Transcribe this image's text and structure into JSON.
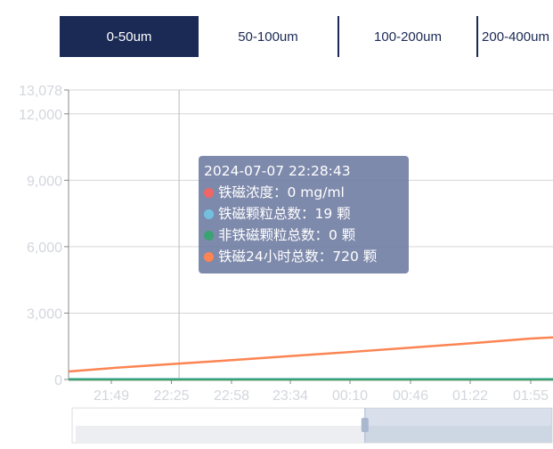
{
  "tabs": [
    {
      "label": "0-50um",
      "active": true
    },
    {
      "label": "50-100um"
    },
    {
      "label": "100-200um"
    },
    {
      "label": "200-400um"
    }
  ],
  "colors": {
    "tab_active": "#1b2a55",
    "red": "#ee6666",
    "blue": "#73c0de",
    "green": "#3ba272",
    "orange": "#fc8452"
  },
  "tooltip": {
    "time": "2024-07-07 22:28:43",
    "rows": [
      {
        "text": "铁磁浓度：0 mg/ml",
        "color": "#ee6666"
      },
      {
        "text": "铁磁颗粒总数：19 颗",
        "color": "#73c0de"
      },
      {
        "text": "非铁磁颗粒总数：0 颗",
        "color": "#3ba272"
      },
      {
        "text": "铁磁24小时总数：720 颗",
        "color": "#fc8452"
      }
    ]
  },
  "chart_data": {
    "type": "line",
    "ylim": [
      0,
      13078
    ],
    "yticks": [
      "0",
      "3,000",
      "6,000",
      "9,000",
      "12,000",
      "13,078"
    ],
    "ytick_values": [
      0,
      3000,
      6000,
      9000,
      12000,
      13078
    ],
    "xticks": [
      "21:49",
      "22:25",
      "22:58",
      "23:34",
      "00:10",
      "00:46",
      "01:22",
      "01:55"
    ],
    "xlim": [
      "21:23",
      "02:08"
    ],
    "grid": true,
    "cursor_time": "22:28",
    "series": [
      {
        "color": "#ee6666",
        "x": [
          "21:23",
          "02:08"
        ],
        "y": [
          0,
          0
        ]
      },
      {
        "color": "#73c0de",
        "x": [
          "21:23",
          "02:08"
        ],
        "y": [
          19,
          19
        ]
      },
      {
        "color": "#3ba272",
        "x": [
          "21:23",
          "02:08"
        ],
        "y": [
          0,
          0
        ]
      },
      {
        "color": "#fc8452",
        "x": [
          "21:23",
          "21:49",
          "22:28",
          "23:00",
          "23:34",
          "00:10",
          "00:46",
          "01:22",
          "01:55",
          "02:08"
        ],
        "y": [
          360,
          520,
          720,
          880,
          1060,
          1250,
          1450,
          1650,
          1850,
          1900
        ]
      }
    ],
    "datazoom": {
      "start_percent": 61,
      "end_percent": 100
    }
  }
}
